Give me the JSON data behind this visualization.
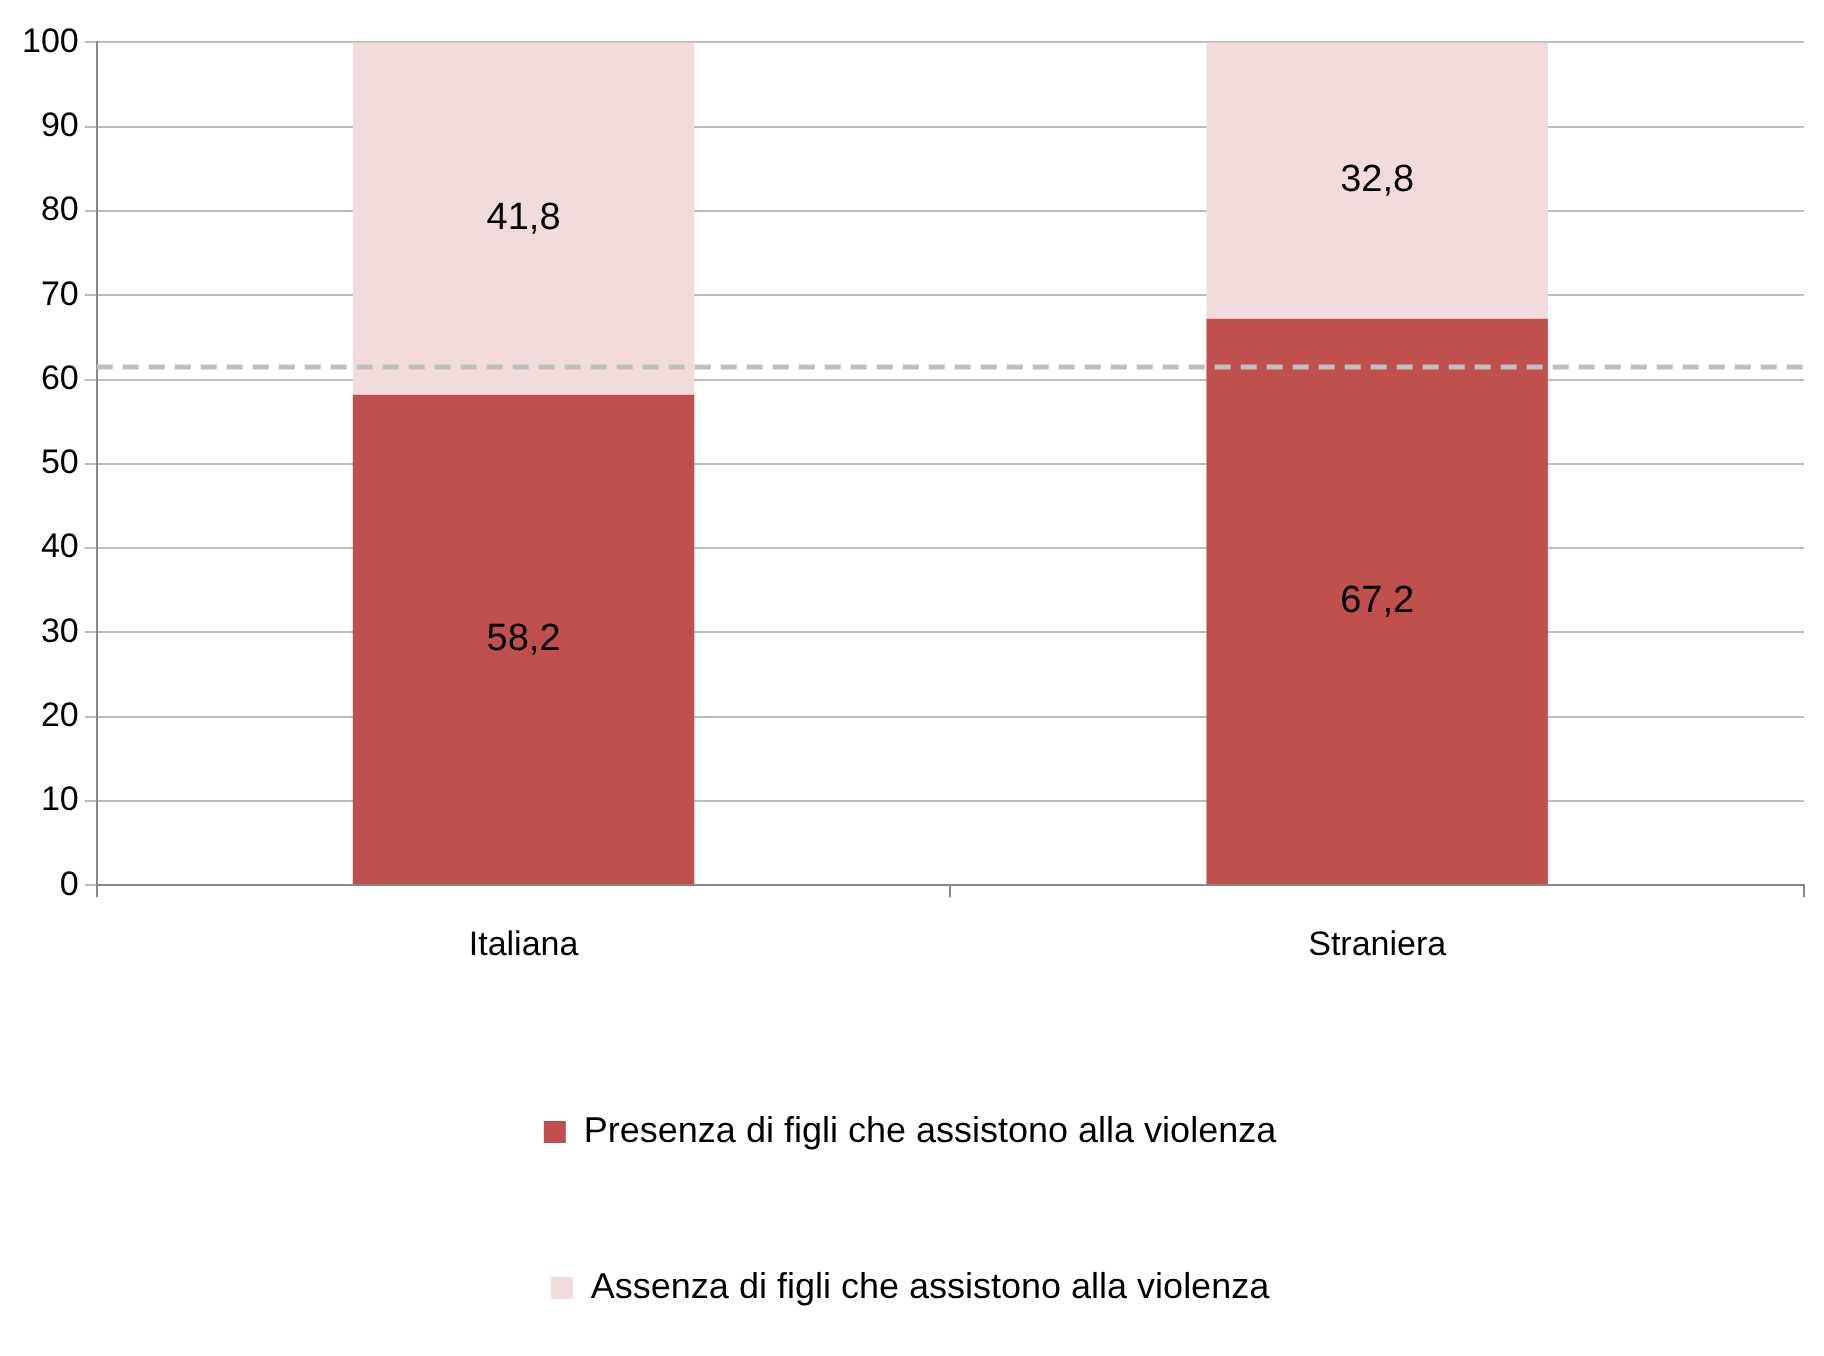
{
  "chart_data": {
    "type": "bar",
    "stacked": true,
    "categories": [
      "Italiana",
      "Straniera"
    ],
    "series": [
      {
        "name": "Presenza di figli che assistono alla violenza",
        "color": "#c0504d",
        "values": [
          58.2,
          67.2
        ],
        "value_labels": [
          "58,2",
          "67,2"
        ]
      },
      {
        "name": "Assenza di figli che assistono alla violenza",
        "color": "#f2dcdb",
        "values": [
          41.8,
          32.8
        ],
        "value_labels": [
          "41,8",
          "32,8"
        ]
      }
    ],
    "ylim": [
      0,
      100
    ],
    "yticks": [
      0,
      10,
      20,
      30,
      40,
      50,
      60,
      70,
      80,
      90,
      100
    ],
    "grid": "y",
    "legend": "bottom",
    "ref_lines": [
      {
        "axis": "y",
        "value": 61.5,
        "color": "#bfbfbf",
        "line_style": "dashed"
      }
    ]
  }
}
